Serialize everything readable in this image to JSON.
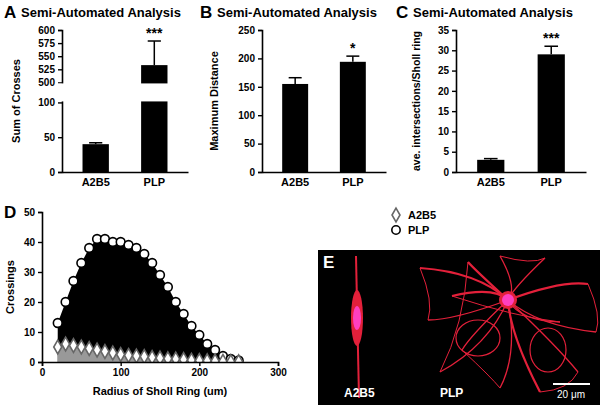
{
  "chart_data": [
    {
      "type": "bar",
      "panel_label": "A",
      "title": "Semi-Automated Analysis",
      "y_label": "Sum of Crosses",
      "categories": [
        "A2B5",
        "PLP"
      ],
      "values": [
        40,
        533
      ],
      "errors": [
        2,
        46
      ],
      "color": "#000000",
      "ylim": [
        0,
        600
      ],
      "y_break": [
        100,
        500
      ],
      "yticks": [
        0,
        50,
        100,
        500,
        525,
        550,
        575,
        600
      ],
      "annotations": [
        {
          "x": "PLP",
          "text": "***"
        }
      ]
    },
    {
      "type": "bar",
      "panel_label": "B",
      "title": "Semi-Automated Analysis",
      "y_label": "Maximum  Distance",
      "categories": [
        "A2B5",
        "PLP"
      ],
      "values": [
        155,
        194
      ],
      "errors": [
        11,
        10
      ],
      "color": "#000000",
      "ylim": [
        0,
        250
      ],
      "yticks": [
        0,
        50,
        100,
        150,
        200,
        250
      ],
      "annotations": [
        {
          "x": "PLP",
          "text": "*"
        }
      ]
    },
    {
      "type": "bar",
      "panel_label": "C",
      "title": "Semi-Automated Analysis",
      "y_label": "ave. intersections/Sholl ring",
      "categories": [
        "A2B5",
        "PLP"
      ],
      "values": [
        3,
        29
      ],
      "errors": [
        0.3,
        2
      ],
      "color": "#000000",
      "ylim": [
        0,
        35
      ],
      "yticks": [
        0,
        5,
        10,
        15,
        20,
        25,
        30,
        35
      ],
      "annotations": [
        {
          "x": "PLP",
          "text": "***"
        }
      ]
    },
    {
      "type": "area",
      "panel_label": "D",
      "x_label": "Radius of Sholl Ring (um)",
      "y_label": "Crossings",
      "x": [
        20,
        30,
        40,
        50,
        60,
        70,
        80,
        90,
        100,
        110,
        120,
        130,
        140,
        150,
        160,
        170,
        180,
        190,
        200,
        210,
        220,
        230,
        240,
        250
      ],
      "series": [
        {
          "name": "A2B5",
          "color": "#999999",
          "marker": "diamond",
          "values": [
            5,
            6,
            5.5,
            5,
            4.5,
            4,
            3.5,
            3,
            2.5,
            2.2,
            2,
            1.8,
            1.5,
            1.3,
            1.1,
            1,
            0.8,
            0.6,
            0.5,
            0.4,
            0.3,
            0.2,
            0.1,
            0.1
          ]
        },
        {
          "name": "PLP",
          "color": "#000000",
          "marker": "circle",
          "values": [
            13,
            20,
            27,
            33,
            38,
            41,
            41,
            40,
            40,
            39,
            38,
            36,
            33,
            29,
            25,
            20,
            16,
            12,
            9,
            6,
            4,
            2,
            1,
            0.5
          ]
        }
      ],
      "xlim": [
        0,
        300
      ],
      "xticks": [
        0,
        100,
        200,
        300
      ],
      "ylim": [
        0,
        50
      ],
      "yticks": [
        0,
        10,
        20,
        30,
        40,
        50
      ],
      "legend": "top-right"
    }
  ],
  "image": {
    "panel_label": "E",
    "labels": [
      "A2B5",
      "PLP"
    ],
    "scale_bar": "20 μm"
  }
}
